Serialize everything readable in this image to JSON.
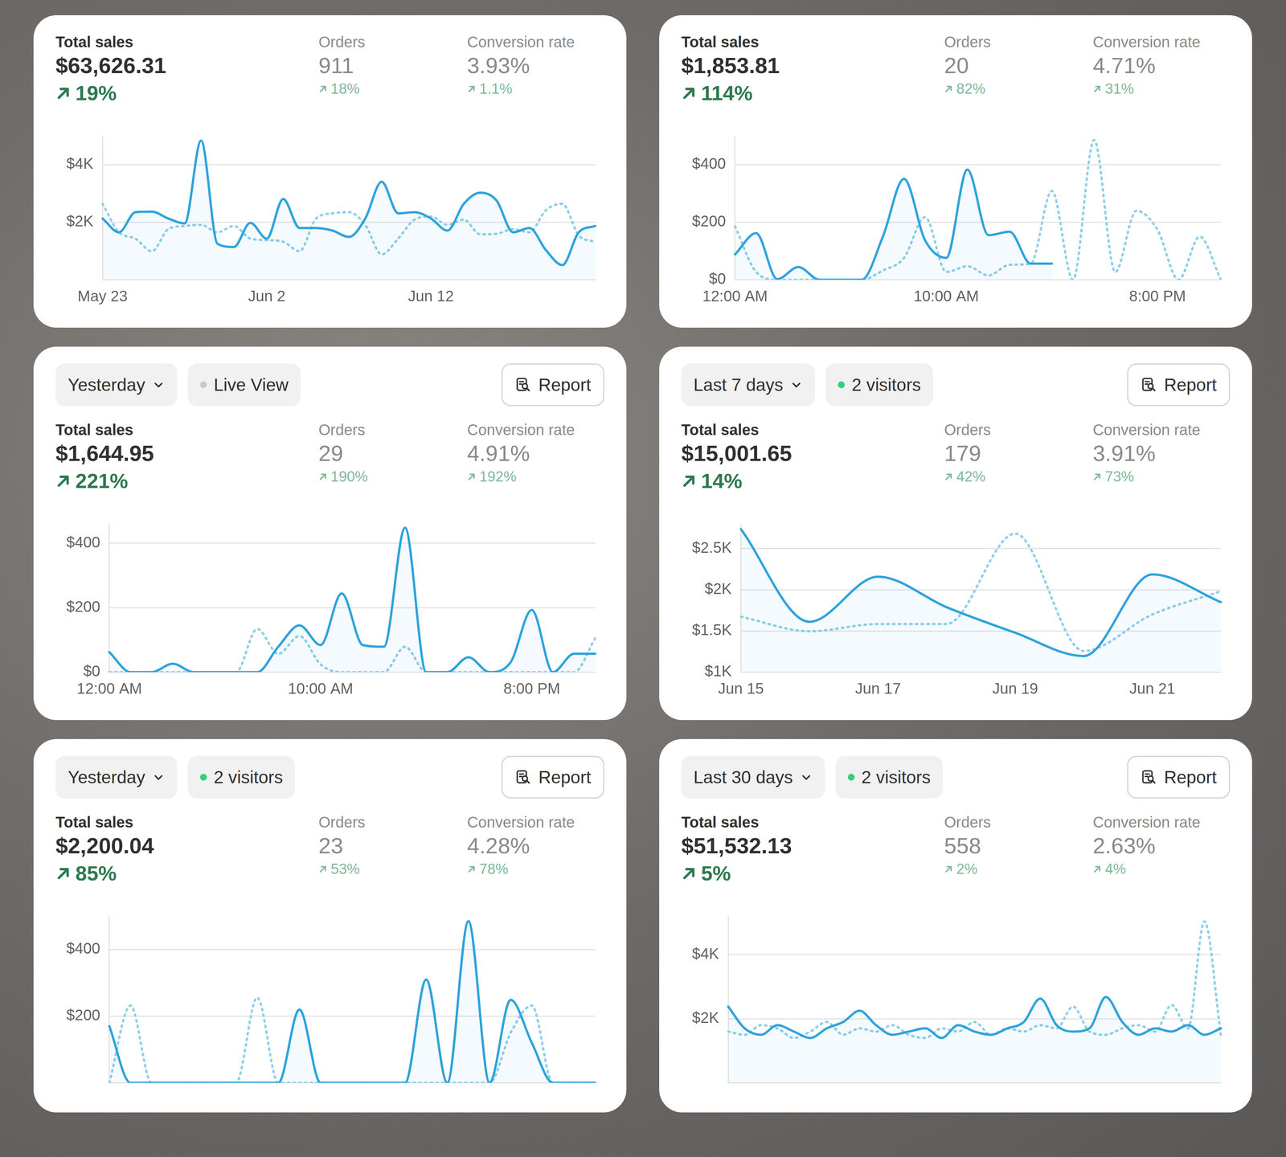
{
  "cards": [
    {
      "metrics": [
        {
          "label": "Total sales",
          "value": "$63,626.31",
          "change": "19%"
        },
        {
          "label": "Orders",
          "value": "911",
          "change": "18%"
        },
        {
          "label": "Conversion rate",
          "value": "3.93%",
          "change": "1.1%"
        }
      ]
    },
    {
      "metrics": [
        {
          "label": "Total sales",
          "value": "$1,853.81",
          "change": "114%"
        },
        {
          "label": "Orders",
          "value": "20",
          "change": "82%"
        },
        {
          "label": "Conversion rate",
          "value": "4.71%",
          "change": "31%"
        }
      ]
    },
    {
      "header": {
        "period": "Yesterday",
        "status": "Live View",
        "status_dot": "#c9c9c9",
        "report": "Report"
      },
      "metrics": [
        {
          "label": "Total sales",
          "value": "$1,644.95",
          "change": "221%"
        },
        {
          "label": "Orders",
          "value": "29",
          "change": "190%"
        },
        {
          "label": "Conversion rate",
          "value": "4.91%",
          "change": "192%"
        }
      ]
    },
    {
      "header": {
        "period": "Last 7 days",
        "status": "2 visitors",
        "status_dot": "#2fd17a",
        "report": "Report"
      },
      "metrics": [
        {
          "label": "Total sales",
          "value": "$15,001.65",
          "change": "14%"
        },
        {
          "label": "Orders",
          "value": "179",
          "change": "42%"
        },
        {
          "label": "Conversion rate",
          "value": "3.91%",
          "change": "73%"
        }
      ]
    },
    {
      "header": {
        "period": "Yesterday",
        "status": "2 visitors",
        "status_dot": "#2fd17a",
        "report": "Report"
      },
      "metrics": [
        {
          "label": "Total sales",
          "value": "$2,200.04",
          "change": "85%"
        },
        {
          "label": "Orders",
          "value": "23",
          "change": "53%"
        },
        {
          "label": "Conversion rate",
          "value": "4.28%",
          "change": "78%"
        }
      ]
    },
    {
      "header": {
        "period": "Last 30 days",
        "status": "2 visitors",
        "status_dot": "#2fd17a",
        "report": "Report"
      },
      "metrics": [
        {
          "label": "Total sales",
          "value": "$51,532.13",
          "change": "5%"
        },
        {
          "label": "Orders",
          "value": "558",
          "change": "2%"
        },
        {
          "label": "Conversion rate",
          "value": "2.63%",
          "change": "4%"
        }
      ]
    }
  ],
  "chart_data": [
    {
      "type": "line",
      "categories": [
        "May 23",
        null,
        null,
        null,
        null,
        null,
        null,
        null,
        null,
        null,
        "Jun 2",
        null,
        null,
        null,
        null,
        null,
        null,
        null,
        null,
        null,
        "Jun 12",
        null,
        null,
        null,
        null,
        null,
        null,
        null,
        null,
        null,
        null
      ],
      "series": [
        {
          "color": "#2ea3dc",
          "line_style": "solid",
          "values": [
            2130,
            1650,
            2350,
            2370,
            2130,
            1960,
            4840,
            1250,
            1140,
            1980,
            1430,
            2810,
            1800,
            1800,
            1710,
            1490,
            2130,
            3410,
            2310,
            2350,
            2130,
            1710,
            2640,
            3030,
            2750,
            1650,
            1800,
            1030,
            510,
            1650,
            1870
          ]
        },
        {
          "color": "#8fcfe9",
          "line_style": "dotted",
          "values": [
            2640,
            1650,
            1430,
            990,
            1760,
            1870,
            1910,
            1650,
            1870,
            1430,
            1380,
            1320,
            990,
            2130,
            2310,
            2350,
            1910,
            880,
            1430,
            2090,
            2200,
            1910,
            2090,
            1580,
            1600,
            1760,
            1650,
            2420,
            2640,
            1540,
            1320
          ]
        }
      ],
      "ylim": [
        0,
        5000
      ],
      "yticks": [
        {
          "value": 2000,
          "label": "$2K"
        },
        {
          "value": 4000,
          "label": "$4K"
        }
      ],
      "grid": true
    },
    {
      "type": "line",
      "categories": [
        "12:00 AM",
        null,
        null,
        null,
        null,
        null,
        null,
        null,
        null,
        null,
        "10:00 AM",
        null,
        null,
        null,
        null,
        null,
        null,
        null,
        null,
        null,
        "8:00 PM",
        null,
        null,
        null
      ],
      "series": [
        {
          "color": "#2ea3dc",
          "line_style": "solid",
          "values": [
            88,
            162,
            2,
            44,
            0,
            0,
            0,
            150,
            351,
            137,
            76,
            383,
            155,
            167,
            56,
            56,
            null,
            null,
            null,
            null,
            null,
            null,
            null,
            null
          ]
        },
        {
          "color": "#8fcfe9",
          "line_style": "dotted",
          "values": [
            186,
            27,
            0,
            0,
            0,
            0,
            0,
            32,
            76,
            218,
            27,
            47,
            15,
            52,
            56,
            309,
            0,
            486,
            27,
            240,
            174,
            0,
            150,
            0
          ]
        }
      ],
      "ylim": [
        0,
        500
      ],
      "yticks": [
        {
          "value": 0,
          "label": "$0"
        },
        {
          "value": 200,
          "label": "$200"
        },
        {
          "value": 400,
          "label": "$400"
        }
      ],
      "grid": true
    },
    {
      "type": "line",
      "categories": [
        "12:00 AM",
        null,
        null,
        null,
        null,
        null,
        null,
        null,
        null,
        null,
        "10:00 AM",
        null,
        null,
        null,
        null,
        null,
        null,
        null,
        null,
        null,
        "8:00 PM",
        null,
        null,
        null
      ],
      "series": [
        {
          "color": "#2ea3dc",
          "line_style": "solid",
          "values": [
            62,
            0,
            0,
            26,
            0,
            0,
            0,
            0,
            79,
            145,
            84,
            244,
            84,
            79,
            448,
            0,
            0,
            46,
            0,
            31,
            193,
            0,
            57,
            57
          ]
        },
        {
          "color": "#8fcfe9",
          "line_style": "dotted",
          "values": [
            0,
            0,
            0,
            0,
            0,
            0,
            0,
            134,
            57,
            112,
            24,
            0,
            0,
            0,
            79,
            0,
            0,
            0,
            0,
            0,
            0,
            0,
            0,
            105
          ]
        }
      ],
      "ylim": [
        0,
        460
      ],
      "yticks": [
        {
          "value": 0,
          "label": "$0"
        },
        {
          "value": 200,
          "label": "$200"
        },
        {
          "value": 400,
          "label": "$400"
        }
      ],
      "grid": true
    },
    {
      "type": "line",
      "categories": [
        "Jun 15",
        null,
        "Jun 17",
        null,
        "Jun 19",
        null,
        "Jun 21",
        null
      ],
      "series": [
        {
          "color": "#2ea3dc",
          "line_style": "solid",
          "values": [
            2735,
            1611,
            2159,
            1788,
            1478,
            1195,
            2186,
            1850
          ]
        },
        {
          "color": "#8fcfe9",
          "line_style": "dotted",
          "values": [
            1673,
            1496,
            1584,
            1584,
            2681,
            1257,
            1699,
            1982
          ]
        }
      ],
      "ylim": [
        1000,
        2800
      ],
      "yticks": [
        {
          "value": 1000,
          "label": "$1K"
        },
        {
          "value": 1500,
          "label": "$1.5K"
        },
        {
          "value": 2000,
          "label": "$2K"
        },
        {
          "value": 2500,
          "label": "$2.5K"
        }
      ],
      "grid": true
    },
    {
      "type": "line",
      "categories": [
        null,
        null,
        null,
        null,
        null,
        null,
        null,
        null,
        null,
        null,
        null,
        null,
        null,
        null,
        null,
        null,
        null,
        null,
        null,
        null,
        null,
        null,
        null,
        null
      ],
      "series": [
        {
          "color": "#2ea3dc",
          "line_style": "solid",
          "values": [
            170,
            0,
            0,
            0,
            0,
            0,
            0,
            0,
            0,
            220,
            0,
            0,
            0,
            0,
            0,
            310,
            0,
            485,
            0,
            249,
            120,
            0,
            0,
            0
          ]
        },
        {
          "color": "#8fcfe9",
          "line_style": "dotted",
          "values": [
            0,
            232,
            0,
            0,
            0,
            0,
            0,
            256,
            0,
            0,
            0,
            0,
            0,
            0,
            0,
            0,
            0,
            0,
            0,
            150,
            232,
            0,
            0,
            0
          ]
        }
      ],
      "ylim": [
        0,
        500
      ],
      "yticks": [
        {
          "value": 200,
          "label": "$200"
        },
        {
          "value": 400,
          "label": "$400"
        }
      ],
      "grid": true,
      "tick_labels": "y"
    },
    {
      "type": "line",
      "categories": [
        null,
        null,
        null,
        null,
        null,
        null,
        null,
        null,
        null,
        null,
        null,
        null,
        null,
        null,
        null,
        null,
        null,
        null,
        null,
        null,
        null,
        null,
        null,
        null,
        null,
        null,
        null,
        null,
        null,
        null,
        null
      ],
      "series": [
        {
          "color": "#2ea3dc",
          "line_style": "solid",
          "values": [
            2380,
            1700,
            1500,
            1800,
            1600,
            1400,
            1700,
            1900,
            2250,
            1800,
            1500,
            1600,
            1700,
            1400,
            1800,
            1600,
            1500,
            1700,
            1900,
            2630,
            1800,
            1600,
            1700,
            2680,
            1900,
            1500,
            1700,
            1600,
            1800,
            1500,
            1700
          ]
        },
        {
          "color": "#8fcfe9",
          "line_style": "dotted",
          "values": [
            1600,
            1500,
            1800,
            1700,
            1400,
            1600,
            1900,
            1500,
            1700,
            1600,
            1800,
            1500,
            1400,
            1700,
            1600,
            1900,
            1500,
            1700,
            1600,
            1800,
            1700,
            2380,
            1600,
            1500,
            1700,
            1800,
            1600,
            2430,
            1700,
            5040,
            1500
          ]
        }
      ],
      "ylim": [
        0,
        5200
      ],
      "yticks": [
        {
          "value": 2000,
          "label": "$2K"
        },
        {
          "value": 4000,
          "label": "$4K"
        }
      ],
      "grid": true,
      "tick_labels": "y"
    }
  ]
}
